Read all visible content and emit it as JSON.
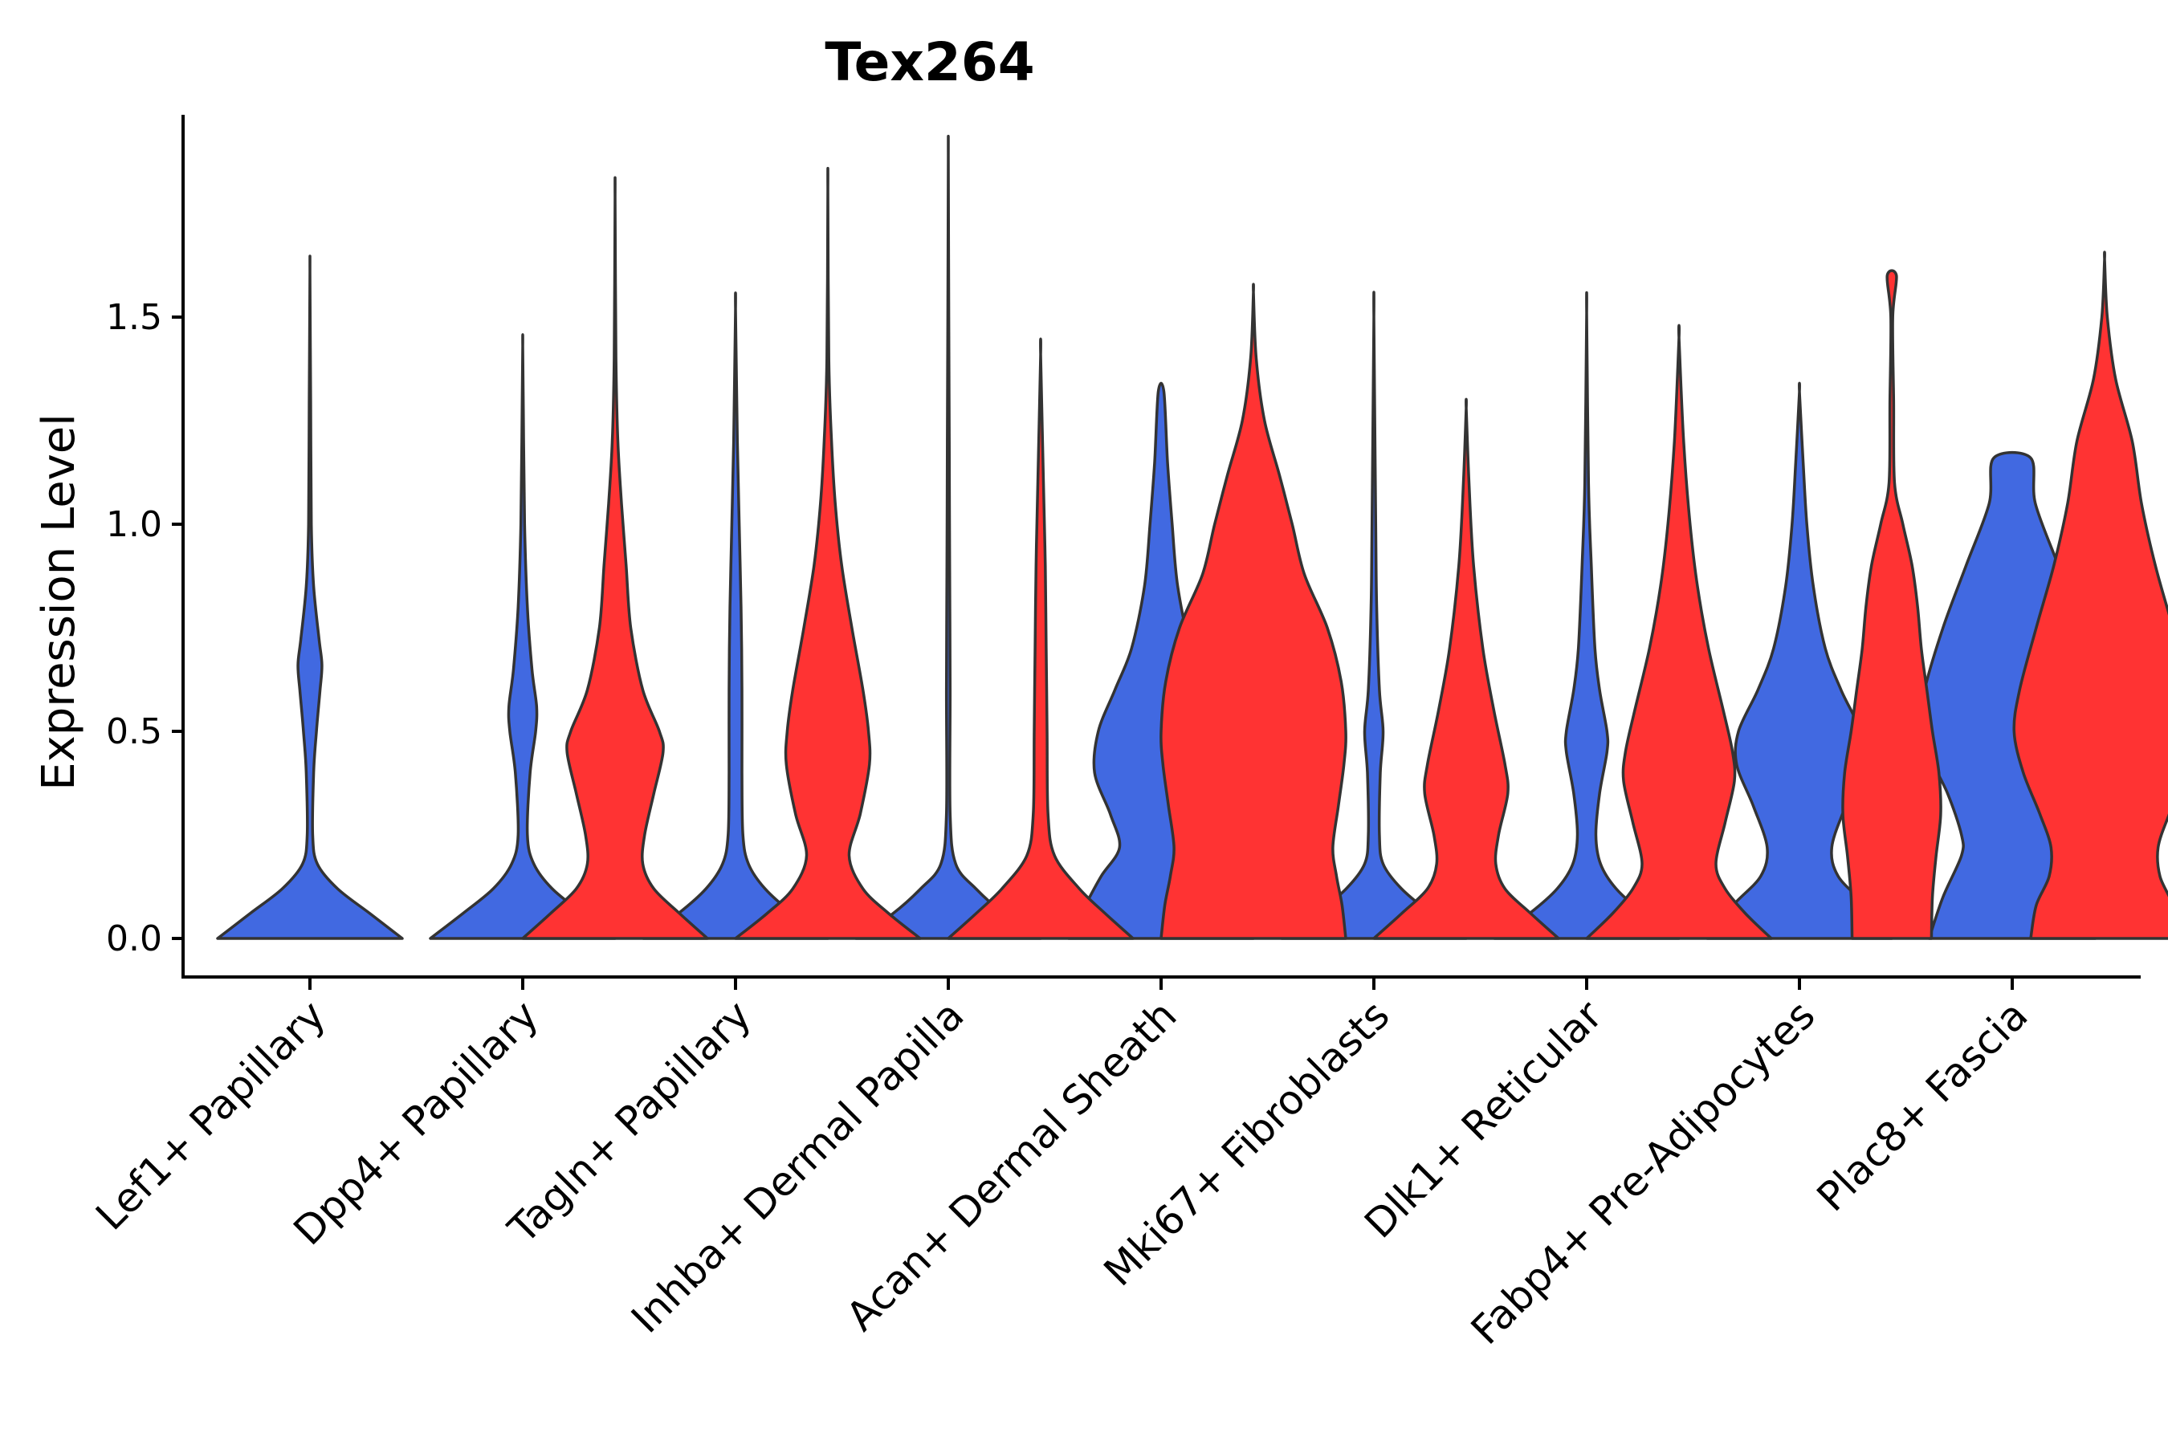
{
  "chart_data": {
    "type": "violin",
    "title": "Tex264",
    "xlabel": "",
    "ylabel": "Expression Level",
    "ylim": [
      -0.1,
      1.98
    ],
    "yticks": [
      0.0,
      0.5,
      1.0,
      1.5
    ],
    "ytick_labels": [
      "0.0",
      "0.5",
      "1.0",
      "1.5"
    ],
    "grid": false,
    "legend": null,
    "colors": {
      "blue": "#4169E1",
      "red": "#FF3333",
      "outline": "#333333"
    },
    "categories": [
      "Lef1+ Papillary",
      "Dpp4+ Papillary",
      "Tagln+ Papillary",
      "Inhba+ Dermal Papilla",
      "Acan+ Dermal Sheath",
      "Mki67+ Fibroblasts",
      "Dlk1+ Reticular",
      "Fabp4+ Pre-Adipocytes",
      "Plac8+ Fascia"
    ],
    "series": [
      {
        "name": "blue",
        "color": "#4169E1",
        "violins": [
          {
            "category": "Lef1+ Papillary",
            "max": 1.61,
            "profile": [
              [
                0.0,
                1.0
              ],
              [
                0.06,
                0.65
              ],
              [
                0.12,
                0.3
              ],
              [
                0.18,
                0.08
              ],
              [
                0.25,
                0.03
              ],
              [
                0.4,
                0.04
              ],
              [
                0.5,
                0.07
              ],
              [
                0.6,
                0.11
              ],
              [
                0.66,
                0.13
              ],
              [
                0.72,
                0.1
              ],
              [
                0.85,
                0.04
              ],
              [
                1.0,
                0.015
              ],
              [
                1.3,
                0.008
              ],
              [
                1.61,
                0.0
              ]
            ]
          },
          {
            "category": "Dpp4+ Papillary",
            "max": 1.43,
            "profile": [
              [
                0.0,
                1.0
              ],
              [
                0.06,
                0.65
              ],
              [
                0.12,
                0.32
              ],
              [
                0.18,
                0.12
              ],
              [
                0.25,
                0.05
              ],
              [
                0.4,
                0.08
              ],
              [
                0.5,
                0.14
              ],
              [
                0.56,
                0.15
              ],
              [
                0.65,
                0.1
              ],
              [
                0.8,
                0.05
              ],
              [
                1.0,
                0.02
              ],
              [
                1.2,
                0.01
              ],
              [
                1.43,
                0.0
              ]
            ]
          },
          {
            "category": "Tagln+ Papillary",
            "max": 1.52,
            "profile": [
              [
                0.0,
                1.0
              ],
              [
                0.06,
                0.62
              ],
              [
                0.12,
                0.32
              ],
              [
                0.18,
                0.14
              ],
              [
                0.25,
                0.08
              ],
              [
                0.4,
                0.07
              ],
              [
                0.6,
                0.07
              ],
              [
                0.8,
                0.06
              ],
              [
                1.0,
                0.04
              ],
              [
                1.2,
                0.02
              ],
              [
                1.52,
                0.0
              ]
            ]
          },
          {
            "category": "Inhba+ Dermal Papilla",
            "max": 1.89,
            "profile": [
              [
                0.0,
                1.0
              ],
              [
                0.06,
                0.6
              ],
              [
                0.12,
                0.3
              ],
              [
                0.18,
                0.08
              ],
              [
                0.3,
                0.02
              ],
              [
                0.6,
                0.02
              ],
              [
                0.9,
                0.015
              ],
              [
                1.2,
                0.01
              ],
              [
                1.5,
                0.005
              ],
              [
                1.89,
                0.0
              ]
            ]
          },
          {
            "category": "Acan+ Dermal Sheath",
            "max": 1.32,
            "profile": [
              [
                0.0,
                1.0
              ],
              [
                0.08,
                0.82
              ],
              [
                0.15,
                0.65
              ],
              [
                0.22,
                0.45
              ],
              [
                0.3,
                0.55
              ],
              [
                0.4,
                0.72
              ],
              [
                0.5,
                0.68
              ],
              [
                0.6,
                0.5
              ],
              [
                0.7,
                0.32
              ],
              [
                0.85,
                0.18
              ],
              [
                1.0,
                0.12
              ],
              [
                1.15,
                0.07
              ],
              [
                1.32,
                0.03
              ]
            ]
          },
          {
            "category": "Mki67+ Fibroblasts",
            "max": 1.5,
            "profile": [
              [
                0.0,
                1.0
              ],
              [
                0.06,
                0.62
              ],
              [
                0.12,
                0.3
              ],
              [
                0.18,
                0.1
              ],
              [
                0.25,
                0.06
              ],
              [
                0.4,
                0.07
              ],
              [
                0.5,
                0.1
              ],
              [
                0.6,
                0.06
              ],
              [
                0.8,
                0.03
              ],
              [
                1.0,
                0.02
              ],
              [
                1.5,
                0.0
              ]
            ]
          },
          {
            "category": "Dlk1+ Reticular",
            "max": 1.51,
            "profile": [
              [
                0.0,
                1.0
              ],
              [
                0.06,
                0.62
              ],
              [
                0.12,
                0.32
              ],
              [
                0.18,
                0.15
              ],
              [
                0.25,
                0.1
              ],
              [
                0.35,
                0.14
              ],
              [
                0.45,
                0.22
              ],
              [
                0.5,
                0.22
              ],
              [
                0.6,
                0.14
              ],
              [
                0.7,
                0.09
              ],
              [
                0.9,
                0.05
              ],
              [
                1.1,
                0.02
              ],
              [
                1.51,
                0.0
              ]
            ]
          },
          {
            "category": "Fabp4+ Pre-Adipocytes",
            "max": 1.32,
            "profile": [
              [
                0.0,
                1.0
              ],
              [
                0.08,
                0.72
              ],
              [
                0.15,
                0.42
              ],
              [
                0.22,
                0.35
              ],
              [
                0.32,
                0.5
              ],
              [
                0.42,
                0.68
              ],
              [
                0.5,
                0.66
              ],
              [
                0.6,
                0.45
              ],
              [
                0.7,
                0.28
              ],
              [
                0.85,
                0.15
              ],
              [
                1.0,
                0.08
              ],
              [
                1.15,
                0.04
              ],
              [
                1.32,
                0.0
              ]
            ]
          },
          {
            "category": "Plac8+ Fascia",
            "max": 1.16,
            "profile": [
              [
                0.0,
                0.9
              ],
              [
                0.1,
                0.75
              ],
              [
                0.2,
                0.55
              ],
              [
                0.25,
                0.55
              ],
              [
                0.35,
                0.7
              ],
              [
                0.45,
                0.92
              ],
              [
                0.52,
                1.0
              ],
              [
                0.6,
                0.95
              ],
              [
                0.75,
                0.75
              ],
              [
                0.9,
                0.5
              ],
              [
                1.05,
                0.25
              ],
              [
                1.16,
                0.2
              ]
            ]
          }
        ]
      },
      {
        "name": "red",
        "color": "#FF3333",
        "violins": [
          {
            "category": "Dpp4+ Papillary",
            "max": 1.79,
            "profile": [
              [
                0.0,
                1.0
              ],
              [
                0.06,
                0.7
              ],
              [
                0.12,
                0.42
              ],
              [
                0.18,
                0.3
              ],
              [
                0.25,
                0.32
              ],
              [
                0.35,
                0.42
              ],
              [
                0.45,
                0.52
              ],
              [
                0.5,
                0.48
              ],
              [
                0.6,
                0.3
              ],
              [
                0.75,
                0.17
              ],
              [
                0.9,
                0.12
              ],
              [
                1.05,
                0.07
              ],
              [
                1.2,
                0.03
              ],
              [
                1.4,
                0.01
              ],
              [
                1.79,
                0.0
              ]
            ]
          },
          {
            "category": "Tagln+ Papillary",
            "max": 1.81,
            "profile": [
              [
                0.0,
                1.0
              ],
              [
                0.06,
                0.66
              ],
              [
                0.12,
                0.38
              ],
              [
                0.2,
                0.23
              ],
              [
                0.3,
                0.35
              ],
              [
                0.42,
                0.45
              ],
              [
                0.5,
                0.44
              ],
              [
                0.6,
                0.38
              ],
              [
                0.75,
                0.26
              ],
              [
                0.9,
                0.15
              ],
              [
                1.05,
                0.08
              ],
              [
                1.2,
                0.04
              ],
              [
                1.4,
                0.01
              ],
              [
                1.81,
                0.0
              ]
            ]
          },
          {
            "category": "Inhba+ Dermal Papilla",
            "max": 1.41,
            "profile": [
              [
                0.0,
                1.0
              ],
              [
                0.06,
                0.7
              ],
              [
                0.12,
                0.42
              ],
              [
                0.2,
                0.15
              ],
              [
                0.3,
                0.08
              ],
              [
                0.5,
                0.07
              ],
              [
                0.7,
                0.06
              ],
              [
                0.9,
                0.05
              ],
              [
                1.1,
                0.03
              ],
              [
                1.41,
                0.0
              ]
            ]
          },
          {
            "category": "Acan+ Dermal Sheath",
            "max": 1.56,
            "profile": [
              [
                0.0,
                1.0
              ],
              [
                0.08,
                0.96
              ],
              [
                0.15,
                0.9
              ],
              [
                0.22,
                0.86
              ],
              [
                0.32,
                0.92
              ],
              [
                0.42,
                0.98
              ],
              [
                0.5,
                1.0
              ],
              [
                0.62,
                0.95
              ],
              [
                0.75,
                0.8
              ],
              [
                0.88,
                0.55
              ],
              [
                1.0,
                0.42
              ],
              [
                1.12,
                0.28
              ],
              [
                1.25,
                0.12
              ],
              [
                1.4,
                0.03
              ],
              [
                1.56,
                0.0
              ]
            ]
          },
          {
            "category": "Mki67+ Fibroblasts",
            "max": 1.28,
            "profile": [
              [
                0.0,
                1.0
              ],
              [
                0.06,
                0.7
              ],
              [
                0.12,
                0.42
              ],
              [
                0.18,
                0.32
              ],
              [
                0.25,
                0.35
              ],
              [
                0.35,
                0.45
              ],
              [
                0.42,
                0.42
              ],
              [
                0.55,
                0.3
              ],
              [
                0.7,
                0.18
              ],
              [
                0.9,
                0.08
              ],
              [
                1.1,
                0.03
              ],
              [
                1.28,
                0.0
              ]
            ]
          },
          {
            "category": "Dlk1+ Reticular",
            "max": 1.45,
            "profile": [
              [
                0.0,
                1.0
              ],
              [
                0.06,
                0.72
              ],
              [
                0.12,
                0.5
              ],
              [
                0.18,
                0.4
              ],
              [
                0.28,
                0.5
              ],
              [
                0.38,
                0.6
              ],
              [
                0.45,
                0.58
              ],
              [
                0.55,
                0.48
              ],
              [
                0.7,
                0.32
              ],
              [
                0.85,
                0.2
              ],
              [
                1.0,
                0.12
              ],
              [
                1.2,
                0.05
              ],
              [
                1.45,
                0.0
              ]
            ]
          },
          {
            "category": "Fabp4+ Pre-Adipocytes",
            "max": 1.6,
            "profile": [
              [
                0.0,
                0.43
              ],
              [
                0.1,
                0.44
              ],
              [
                0.2,
                0.48
              ],
              [
                0.3,
                0.53
              ],
              [
                0.4,
                0.51
              ],
              [
                0.5,
                0.44
              ],
              [
                0.6,
                0.38
              ],
              [
                0.7,
                0.32
              ],
              [
                0.8,
                0.28
              ],
              [
                0.9,
                0.22
              ],
              [
                1.0,
                0.12
              ],
              [
                1.1,
                0.03
              ],
              [
                1.3,
                0.02
              ],
              [
                1.5,
                0.01
              ],
              [
                1.6,
                0.05
              ]
            ]
          },
          {
            "category": "Plac8+ Fascia",
            "max": 1.64,
            "profile": [
              [
                0.0,
                0.8
              ],
              [
                0.08,
                0.74
              ],
              [
                0.15,
                0.6
              ],
              [
                0.22,
                0.58
              ],
              [
                0.3,
                0.7
              ],
              [
                0.4,
                0.88
              ],
              [
                0.5,
                0.98
              ],
              [
                0.6,
                0.92
              ],
              [
                0.75,
                0.74
              ],
              [
                0.9,
                0.55
              ],
              [
                1.05,
                0.4
              ],
              [
                1.2,
                0.3
              ],
              [
                1.35,
                0.12
              ],
              [
                1.5,
                0.03
              ],
              [
                1.64,
                0.0
              ]
            ]
          }
        ]
      }
    ]
  }
}
